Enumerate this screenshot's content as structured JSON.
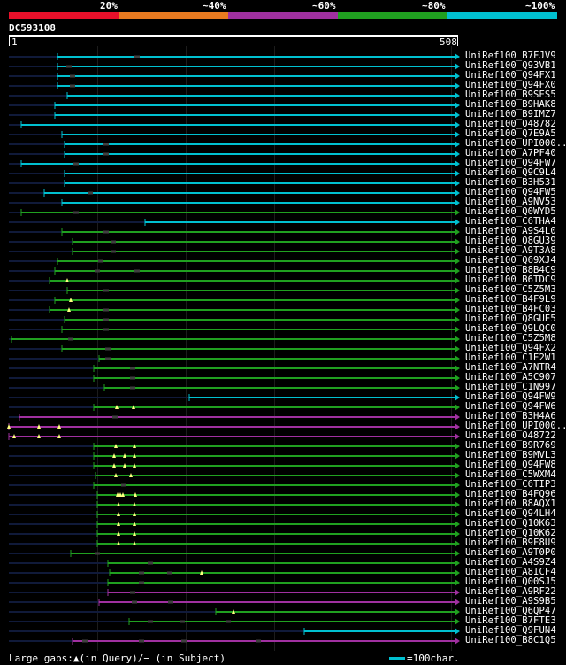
{
  "scale": {
    "labels": [
      "20%",
      "~40%",
      "~60%",
      "~80%",
      "~100%"
    ],
    "colors": [
      "#e8102a",
      "#e87a20",
      "#a030a0",
      "#20a020",
      "#00c0d0"
    ]
  },
  "query": {
    "title": "DC593108",
    "start": "1",
    "end": "508",
    "length": 508
  },
  "colors": {
    "cyan": "#00c0d0",
    "green": "#20a020",
    "purple": "#a030a0",
    "pre": "#101a3a"
  },
  "hits": [
    {
      "name": "UniRef100_B7FJV9",
      "color": "cyan",
      "start": 55,
      "pre": 0,
      "gaps": [
        [
          145,
          "-"
        ]
      ]
    },
    {
      "name": "UniRef100_Q93VB1",
      "color": "cyan",
      "start": 55,
      "pre": 0,
      "gaps": [
        [
          68,
          "-"
        ]
      ]
    },
    {
      "name": "UniRef100_Q94FX1",
      "color": "cyan",
      "start": 55,
      "pre": 0,
      "gaps": [
        [
          72,
          "-"
        ]
      ]
    },
    {
      "name": "UniRef100_Q94FX0",
      "color": "cyan",
      "start": 55,
      "pre": 0,
      "gaps": [
        [
          72,
          "-"
        ]
      ]
    },
    {
      "name": "UniRef100_B9SES5",
      "color": "cyan",
      "start": 66,
      "pre": 0,
      "gaps": []
    },
    {
      "name": "UniRef100_B9HAK8",
      "color": "cyan",
      "start": 52,
      "pre": 0,
      "gaps": []
    },
    {
      "name": "UniRef100_B9IMZ7",
      "color": "cyan",
      "start": 52,
      "pre": 0,
      "gaps": []
    },
    {
      "name": "UniRef100_O48782",
      "color": "cyan",
      "start": 14,
      "pre": 0,
      "gaps": []
    },
    {
      "name": "UniRef100_Q7E9A5",
      "color": "cyan",
      "start": 60,
      "pre": 0,
      "gaps": []
    },
    {
      "name": "UniRef100_UPI000..",
      "color": "cyan",
      "start": 63,
      "pre": 0,
      "gaps": [
        [
          110,
          "-"
        ]
      ]
    },
    {
      "name": "UniRef100_A7PF40",
      "color": "cyan",
      "start": 63,
      "pre": 0,
      "gaps": [
        [
          110,
          "-"
        ]
      ]
    },
    {
      "name": "UniRef100_Q94FW7",
      "color": "cyan",
      "start": 14,
      "pre": 0,
      "gaps": [
        [
          76,
          "-"
        ]
      ]
    },
    {
      "name": "UniRef100_Q9C9L4",
      "color": "cyan",
      "start": 63,
      "pre": 0,
      "gaps": []
    },
    {
      "name": "UniRef100_B3H531",
      "color": "cyan",
      "start": 63,
      "pre": 0,
      "gaps": []
    },
    {
      "name": "UniRef100_Q94FW5",
      "color": "cyan",
      "start": 40,
      "pre": 0,
      "gaps": [
        [
          92,
          "-"
        ]
      ]
    },
    {
      "name": "UniRef100_A9NV53",
      "color": "cyan",
      "start": 60,
      "pre": 0,
      "gaps": []
    },
    {
      "name": "UniRef100_Q0WYD5",
      "color": "green",
      "start": 14,
      "pre": 0,
      "gaps": [
        [
          76,
          "-"
        ]
      ]
    },
    {
      "name": "UniRef100_C6THA4",
      "color": "cyan",
      "start": 154,
      "pre": 0,
      "gaps": []
    },
    {
      "name": "UniRef100_A9S4L0",
      "color": "green",
      "start": 60,
      "pre": 0,
      "gaps": [
        [
          110,
          "-"
        ]
      ]
    },
    {
      "name": "UniRef100_Q8GU39",
      "color": "green",
      "start": 72,
      "pre": 0,
      "gaps": [
        [
          118,
          "-"
        ]
      ]
    },
    {
      "name": "UniRef100_A9T3A8",
      "color": "green",
      "start": 72,
      "pre": 0,
      "gaps": [
        [
          118,
          "-"
        ]
      ]
    },
    {
      "name": "UniRef100_Q69XJ4",
      "color": "green",
      "start": 55,
      "pre": 0,
      "gaps": [
        [
          104,
          "-"
        ]
      ]
    },
    {
      "name": "UniRef100_B8B4C9",
      "color": "green",
      "start": 52,
      "pre": 0,
      "gaps": [
        [
          100,
          "-"
        ],
        [
          145,
          "-"
        ]
      ]
    },
    {
      "name": "UniRef100_B6TDC9",
      "color": "green",
      "start": 46,
      "pre": 0,
      "gaps": [
        [
          66,
          "^"
        ]
      ]
    },
    {
      "name": "UniRef100_C5Z5M3",
      "color": "green",
      "start": 66,
      "pre": 0,
      "gaps": [
        [
          110,
          "-"
        ]
      ]
    },
    {
      "name": "UniRef100_B4F9L9",
      "color": "green",
      "start": 52,
      "pre": 0,
      "gaps": [
        [
          70,
          "^"
        ]
      ]
    },
    {
      "name": "UniRef100_B4FC03",
      "color": "green",
      "start": 46,
      "pre": 0,
      "gaps": [
        [
          68,
          "^"
        ],
        [
          110,
          "-"
        ]
      ]
    },
    {
      "name": "UniRef100_Q8GUE5",
      "color": "green",
      "start": 63,
      "pre": 0,
      "gaps": [
        [
          110,
          "-"
        ]
      ]
    },
    {
      "name": "UniRef100_Q9LQC0",
      "color": "green",
      "start": 60,
      "pre": 0,
      "gaps": [
        [
          110,
          "-"
        ]
      ]
    },
    {
      "name": "UniRef100_C5Z5M8",
      "color": "green",
      "start": 3,
      "pre": 0,
      "gaps": [
        [
          70,
          "-"
        ]
      ]
    },
    {
      "name": "UniRef100_Q94FX2",
      "color": "green",
      "start": 60,
      "pre": 0,
      "gaps": [
        [
          112,
          "-"
        ]
      ]
    },
    {
      "name": "UniRef100_C1E2W1",
      "color": "green",
      "start": 102,
      "pre": 0,
      "gaps": [
        [
          112,
          "-"
        ]
      ]
    },
    {
      "name": "UniRef100_A7NTR4",
      "color": "green",
      "start": 96,
      "pre": 0,
      "gaps": [
        [
          140,
          "-"
        ]
      ]
    },
    {
      "name": "UniRef100_A5C907",
      "color": "green",
      "start": 96,
      "pre": 0,
      "gaps": [
        [
          140,
          "-"
        ]
      ]
    },
    {
      "name": "UniRef100_C1N997",
      "color": "green",
      "start": 108,
      "pre": 0,
      "gaps": [
        [
          140,
          "-"
        ]
      ]
    },
    {
      "name": "UniRef100_Q94FW9",
      "color": "cyan",
      "start": 204,
      "pre": 0,
      "gaps": []
    },
    {
      "name": "UniRef100_Q94FW6",
      "color": "green",
      "start": 96,
      "pre": 0,
      "gaps": [
        [
          122,
          "^"
        ],
        [
          141,
          "^"
        ]
      ]
    },
    {
      "name": "UniRef100_B3H4A6",
      "color": "purple",
      "start": 12,
      "pre": 0,
      "gaps": [
        [
          120,
          "-"
        ]
      ]
    },
    {
      "name": "UniRef100_UPI000..",
      "color": "purple",
      "start": 0,
      "pre": 0,
      "gaps": [
        [
          0,
          "^"
        ],
        [
          34,
          "^"
        ],
        [
          57,
          "^"
        ]
      ]
    },
    {
      "name": "UniRef100_O48722",
      "color": "purple",
      "start": 0,
      "pre": 0,
      "gaps": [
        [
          6,
          "^"
        ],
        [
          34,
          "^"
        ],
        [
          57,
          "^"
        ]
      ]
    },
    {
      "name": "UniRef100_B9R769",
      "color": "green",
      "start": 96,
      "pre": 0,
      "gaps": [
        [
          121,
          "^"
        ],
        [
          142,
          "^"
        ]
      ]
    },
    {
      "name": "UniRef100_B9MVL3",
      "color": "green",
      "start": 96,
      "pre": 0,
      "gaps": [
        [
          119,
          "^"
        ],
        [
          131,
          "^"
        ],
        [
          142,
          "^"
        ]
      ]
    },
    {
      "name": "UniRef100_Q94FW8",
      "color": "green",
      "start": 96,
      "pre": 0,
      "gaps": [
        [
          119,
          "^"
        ],
        [
          131,
          "^"
        ],
        [
          142,
          "^"
        ]
      ]
    },
    {
      "name": "UniRef100_C5WXM4",
      "color": "green",
      "start": 98,
      "pre": 0,
      "gaps": [
        [
          121,
          "^"
        ],
        [
          138,
          "^"
        ]
      ]
    },
    {
      "name": "UniRef100_C6TIP3",
      "color": "green",
      "start": 96,
      "pre": 0,
      "gaps": [
        [
          130,
          "-"
        ]
      ]
    },
    {
      "name": "UniRef100_B4FQ96",
      "color": "green",
      "start": 100,
      "pre": 0,
      "gaps": [
        [
          123,
          "^"
        ],
        [
          126,
          "^"
        ],
        [
          129,
          "^"
        ],
        [
          143,
          "^"
        ]
      ]
    },
    {
      "name": "UniRef100_B8AQX1",
      "color": "green",
      "start": 100,
      "pre": 0,
      "gaps": [
        [
          124,
          "^"
        ],
        [
          142,
          "^"
        ]
      ]
    },
    {
      "name": "UniRef100_Q94LH4",
      "color": "green",
      "start": 100,
      "pre": 0,
      "gaps": [
        [
          124,
          "^"
        ],
        [
          142,
          "^"
        ]
      ]
    },
    {
      "name": "UniRef100_Q10K63",
      "color": "green",
      "start": 100,
      "pre": 0,
      "gaps": [
        [
          124,
          "^"
        ],
        [
          142,
          "^"
        ]
      ]
    },
    {
      "name": "UniRef100_Q10K62",
      "color": "green",
      "start": 100,
      "pre": 0,
      "gaps": [
        [
          124,
          "^"
        ],
        [
          142,
          "^"
        ]
      ]
    },
    {
      "name": "UniRef100_B9F8U9",
      "color": "green",
      "start": 100,
      "pre": 0,
      "gaps": [
        [
          124,
          "^"
        ],
        [
          142,
          "^"
        ]
      ]
    },
    {
      "name": "UniRef100_A9T0P0",
      "color": "green",
      "start": 70,
      "pre": 0,
      "gaps": [
        [
          100,
          "-"
        ]
      ]
    },
    {
      "name": "UniRef100_A4S9Z4",
      "color": "green",
      "start": 112,
      "pre": 0,
      "gaps": [
        [
          160,
          "-"
        ]
      ]
    },
    {
      "name": "UniRef100_A8ICF4",
      "color": "green",
      "start": 114,
      "pre": 0,
      "gaps": [
        [
          150,
          "-"
        ],
        [
          182,
          "-"
        ],
        [
          218,
          "^"
        ]
      ]
    },
    {
      "name": "UniRef100_Q00SJ5",
      "color": "green",
      "start": 112,
      "pre": 0,
      "gaps": [
        [
          150,
          "-"
        ]
      ]
    },
    {
      "name": "UniRef100_A9RF22",
      "color": "purple",
      "start": 112,
      "pre": 0,
      "gaps": [
        [
          140,
          "-"
        ]
      ]
    },
    {
      "name": "UniRef100_A9S9B5",
      "color": "purple",
      "start": 102,
      "pre": 0,
      "gaps": [
        [
          142,
          "-"
        ],
        [
          183,
          "-"
        ]
      ]
    },
    {
      "name": "UniRef100_Q6QP47",
      "color": "green",
      "start": 234,
      "pre": 0,
      "gaps": [
        [
          254,
          "^"
        ]
      ]
    },
    {
      "name": "UniRef100_B7FTE3",
      "color": "green",
      "start": 136,
      "pre": 0,
      "gaps": [
        [
          160,
          "-"
        ],
        [
          196,
          "-"
        ],
        [
          248,
          "-"
        ]
      ]
    },
    {
      "name": "UniRef100_Q9FUN4",
      "color": "cyan",
      "start": 334,
      "pre": 0,
      "gaps": []
    },
    {
      "name": "UniRef100_B8C1Q5",
      "color": "purple",
      "start": 72,
      "pre": 0,
      "gaps": [
        [
          86,
          "-"
        ],
        [
          150,
          "-"
        ],
        [
          198,
          "-"
        ],
        [
          282,
          "-"
        ]
      ]
    }
  ],
  "footer": {
    "gaps_text": "Large gaps:▲(in Query)/− (in Subject)",
    "legend_text": "=100char."
  }
}
